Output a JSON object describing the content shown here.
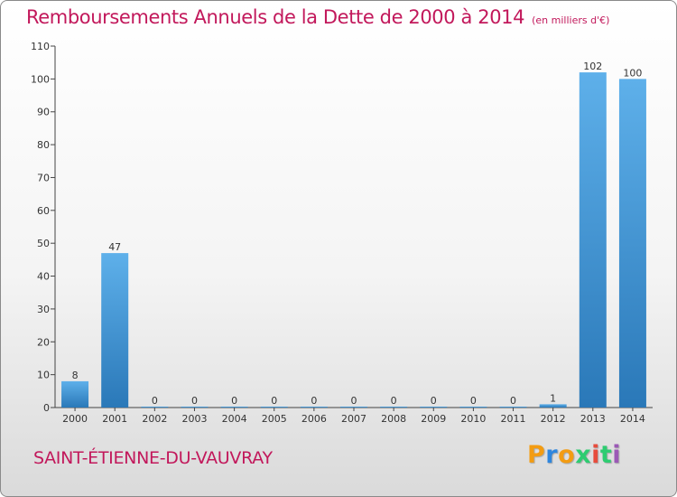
{
  "header": {
    "title": "Remboursements Annuels de la Dette de 2000 à 2014",
    "unit": "(en milliers d'€)"
  },
  "footer": {
    "town": "SAINT-ÉTIENNE-DU-VAUVRAY",
    "logo": "Proxiti"
  },
  "colors": {
    "title": "#c2185b",
    "bar_top": "#5eb0ea",
    "bar_bottom": "#2a78b8",
    "axis": "#444444",
    "logo_letters": [
      "#f39c12",
      "#2e86de",
      "#f39c12",
      "#2ecc71",
      "#e74c3c",
      "#2ecc71",
      "#9b59b6"
    ]
  },
  "chart_data": {
    "type": "bar",
    "title": "Remboursements Annuels de la Dette de 2000 à 2014",
    "subtitle": "(en milliers d'€)",
    "xlabel": "",
    "ylabel": "",
    "categories": [
      "2000",
      "2001",
      "2002",
      "2003",
      "2004",
      "2005",
      "2006",
      "2007",
      "2008",
      "2009",
      "2010",
      "2011",
      "2012",
      "2013",
      "2014"
    ],
    "values": [
      8,
      47,
      0,
      0,
      0,
      0,
      0,
      0,
      0,
      0,
      0,
      0,
      1,
      102,
      100
    ],
    "ylim": [
      0,
      110
    ],
    "yticks": [
      0,
      10,
      20,
      30,
      40,
      50,
      60,
      70,
      80,
      90,
      100,
      110
    ],
    "grid": false,
    "data_labels": true
  }
}
